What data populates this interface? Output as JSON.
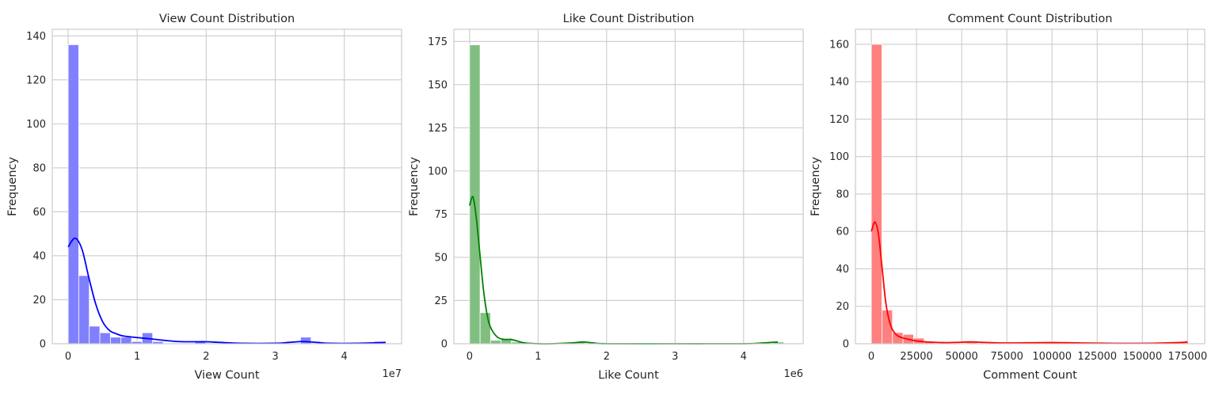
{
  "chart_data": [
    {
      "type": "histogram",
      "title": "View Count Distribution",
      "xlabel": "View Count",
      "ylabel": "Frequency",
      "color": "#0000ff",
      "bar_color": "#8080ff",
      "offset_text": "1e7",
      "x_scale": 10000000,
      "xlim": [
        -2300000,
        48300000
      ],
      "ylim": [
        0,
        143
      ],
      "x_ticks": [
        0,
        10000000,
        20000000,
        30000000,
        40000000
      ],
      "x_tick_labels": [
        "0",
        "1",
        "2",
        "3",
        "4"
      ],
      "y_ticks": [
        0,
        20,
        40,
        60,
        80,
        100,
        120,
        140
      ],
      "y_tick_labels": [
        "0",
        "20",
        "40",
        "60",
        "80",
        "100",
        "120",
        "140"
      ],
      "bin_width": 1530000,
      "bin_start": 0,
      "counts": [
        136,
        31,
        8,
        5,
        3,
        3,
        1,
        5,
        1,
        0,
        0,
        0,
        1,
        0,
        0,
        0,
        0,
        0,
        0,
        0,
        0,
        0,
        3,
        0,
        0,
        0,
        0,
        0,
        0,
        1
      ],
      "kde_x": [
        0,
        1000000,
        2000000,
        3000000,
        4000000,
        5000000,
        6000000,
        7000000,
        8000000,
        10000000,
        12000000,
        14000000,
        16000000,
        18000000,
        20000000,
        22000000,
        25000000,
        30000000,
        32000000,
        34000000,
        36000000,
        38000000,
        42000000,
        46000000
      ],
      "kde_y": [
        44,
        48,
        43,
        30,
        18,
        10,
        6,
        4.5,
        3.5,
        2.8,
        2.2,
        1.5,
        1,
        0.9,
        0.9,
        0.6,
        0.2,
        0.2,
        0.6,
        1,
        0.6,
        0.2,
        0.2,
        0.6
      ]
    },
    {
      "type": "histogram",
      "title": "Like Count Distribution",
      "xlabel": "Like Count",
      "ylabel": "Frequency",
      "color": "#008000",
      "bar_color": "#80bf80",
      "offset_text": "1e6",
      "x_scale": 1000000,
      "xlim": [
        -230000,
        4870000
      ],
      "ylim": [
        0,
        182
      ],
      "x_ticks": [
        0,
        1000000,
        2000000,
        3000000,
        4000000
      ],
      "x_tick_labels": [
        "0",
        "1",
        "2",
        "3",
        "4"
      ],
      "y_ticks": [
        0,
        25,
        50,
        75,
        100,
        125,
        150,
        175
      ],
      "y_tick_labels": [
        "0",
        "25",
        "50",
        "75",
        "100",
        "125",
        "150",
        "175"
      ],
      "bin_width": 153000,
      "bin_start": 0,
      "counts": [
        173,
        18,
        2,
        3,
        1,
        0,
        0,
        0,
        0,
        0,
        1,
        0,
        0,
        0,
        0,
        0,
        0,
        0,
        0,
        0,
        0,
        0,
        0,
        0,
        0,
        0,
        0,
        0,
        0,
        1
      ],
      "kde_x": [
        0,
        50000,
        100000,
        150000,
        200000,
        250000,
        300000,
        400000,
        500000,
        600000,
        700000,
        800000,
        1000000,
        1200000,
        1500000,
        1650000,
        1800000,
        2000000,
        3000000,
        4000000,
        4300000,
        4500000
      ],
      "kde_y": [
        80,
        85,
        72,
        52,
        32,
        18,
        10,
        4,
        2.5,
        2.5,
        1.5,
        0.5,
        0,
        0,
        0.5,
        1,
        0.5,
        0,
        0,
        0,
        0.5,
        1
      ]
    },
    {
      "type": "histogram",
      "title": "Comment Count Distribution",
      "xlabel": "Comment Count",
      "ylabel": "Frequency",
      "color": "#ff0000",
      "bar_color": "#ff8080",
      "offset_text": "",
      "x_scale": 1,
      "xlim": [
        -8800,
        184500
      ],
      "ylim": [
        0,
        168
      ],
      "x_ticks": [
        0,
        25000,
        50000,
        75000,
        100000,
        125000,
        150000,
        175000
      ],
      "x_tick_labels": [
        "0",
        "25000",
        "50000",
        "75000",
        "100000",
        "125000",
        "150000",
        "175000"
      ],
      "y_ticks": [
        0,
        20,
        40,
        60,
        80,
        100,
        120,
        140,
        160
      ],
      "y_tick_labels": [
        "0",
        "20",
        "40",
        "60",
        "80",
        "100",
        "120",
        "140",
        "160"
      ],
      "bin_width": 5850,
      "bin_start": 0,
      "counts": [
        160,
        18,
        6,
        5,
        3,
        1,
        0,
        0,
        0,
        1,
        0,
        0,
        0,
        0,
        0,
        0,
        0,
        1,
        0,
        0,
        0,
        0,
        0,
        0,
        0,
        0,
        0,
        0,
        0,
        1
      ],
      "kde_x": [
        0,
        2000,
        4000,
        6000,
        8000,
        10000,
        12000,
        15000,
        20000,
        25000,
        30000,
        40000,
        50000,
        55000,
        60000,
        75000,
        100000,
        125000,
        150000,
        170000,
        175000
      ],
      "kde_y": [
        60,
        65,
        58,
        40,
        22,
        12,
        7,
        4,
        2.5,
        1.5,
        1,
        0.6,
        0.8,
        1,
        0.8,
        0.4,
        0.6,
        0.3,
        0.2,
        0.6,
        1
      ]
    }
  ]
}
